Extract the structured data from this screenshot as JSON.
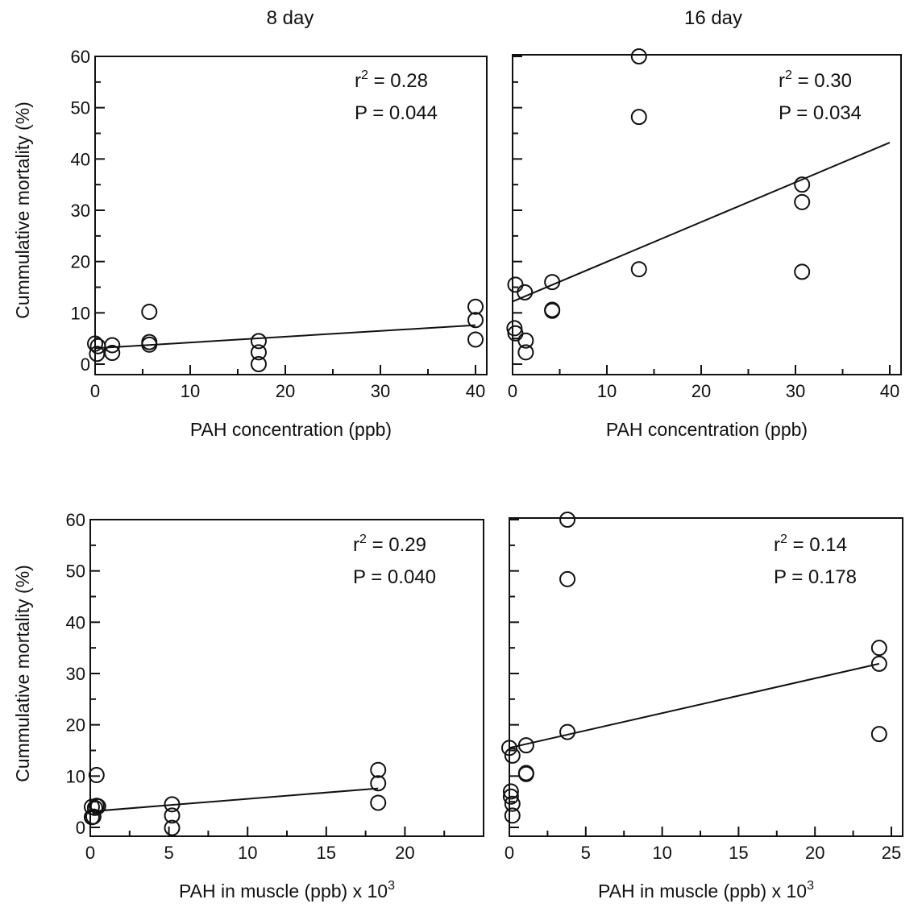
{
  "column_titles": [
    "8 day",
    "16 day"
  ],
  "chart_data": [
    {
      "type": "scatter",
      "xlabel": "PAH concentration (ppb)",
      "ylabel": "Cummulative mortality (%)",
      "xlim": [
        0,
        40
      ],
      "ylim": [
        0,
        60
      ],
      "xticks": [
        0,
        10,
        20,
        30,
        40
      ],
      "yticks": [
        0,
        10,
        20,
        30,
        40,
        50,
        60
      ],
      "stats": {
        "r2_label": "r",
        "r2_sup": "2",
        "r2_value": "= 0.28",
        "p_text": "P = 0.044"
      },
      "points": [
        [
          0,
          4
        ],
        [
          0.3,
          3.5
        ],
        [
          0.2,
          2
        ],
        [
          1.8,
          3.7
        ],
        [
          1.8,
          2.2
        ],
        [
          5.7,
          10.2
        ],
        [
          5.7,
          4.3
        ],
        [
          5.7,
          3.8
        ],
        [
          17.2,
          4.5
        ],
        [
          17.2,
          2.3
        ],
        [
          17.2,
          0
        ],
        [
          40,
          11.2
        ],
        [
          40,
          8.6
        ],
        [
          40,
          4.8
        ]
      ],
      "fit_line": {
        "x": [
          0,
          40
        ],
        "y": [
          3.1,
          7.6
        ]
      }
    },
    {
      "type": "scatter",
      "xlabel": "PAH concentration (ppb)",
      "ylabel": "",
      "xlim": [
        0,
        40
      ],
      "ylim": [
        0,
        60
      ],
      "xticks": [
        0,
        10,
        20,
        30,
        40
      ],
      "yticks": [
        0,
        10,
        20,
        30,
        40,
        50,
        60
      ],
      "stats": {
        "r2_label": "r",
        "r2_sup": "2",
        "r2_value": "= 0.30",
        "p_text": "P = 0.034"
      },
      "points": [
        [
          0.3,
          15.5
        ],
        [
          0.2,
          7
        ],
        [
          0.3,
          6
        ],
        [
          1.3,
          14
        ],
        [
          1.4,
          4.6
        ],
        [
          1.4,
          2.3
        ],
        [
          4.2,
          16
        ],
        [
          4.2,
          10.6
        ],
        [
          4.2,
          10.4
        ],
        [
          13.4,
          60
        ],
        [
          13.4,
          48.2
        ],
        [
          13.4,
          18.5
        ],
        [
          30.7,
          35
        ],
        [
          30.7,
          31.6
        ],
        [
          30.7,
          18
        ]
      ],
      "fit_line": {
        "x": [
          0,
          40
        ],
        "y": [
          12.2,
          43.2
        ]
      }
    },
    {
      "type": "scatter",
      "xlabel": "PAH in muscle (ppb) x 10",
      "xlabel_sup": "3",
      "ylabel": "Cummulative mortality (%)",
      "xlim": [
        0,
        25
      ],
      "ylim": [
        0,
        60
      ],
      "xticks": [
        0,
        5,
        10,
        15,
        20
      ],
      "yticks": [
        0,
        10,
        20,
        30,
        40,
        50,
        60
      ],
      "stats": {
        "r2_label": "r",
        "r2_sup": "2",
        "r2_value": "= 0.29",
        "p_text": "P = 0.040"
      },
      "points": [
        [
          0.1,
          4
        ],
        [
          0.1,
          2
        ],
        [
          0.2,
          2.1
        ],
        [
          0.3,
          3.8
        ],
        [
          0.4,
          4.2
        ],
        [
          0.5,
          4.1
        ],
        [
          0.4,
          10.2
        ],
        [
          5.2,
          4.5
        ],
        [
          5.2,
          2.3
        ],
        [
          5.2,
          -0.1
        ],
        [
          18.3,
          11.2
        ],
        [
          18.3,
          8.6
        ],
        [
          18.3,
          4.8
        ]
      ],
      "fit_line": {
        "x": [
          0,
          18.3
        ],
        "y": [
          3.1,
          7.6
        ]
      }
    },
    {
      "type": "scatter",
      "xlabel": "PAH in muscle (ppb) x 10",
      "xlabel_sup": "3",
      "ylabel": "",
      "xlim": [
        0,
        25
      ],
      "ylim": [
        0,
        60
      ],
      "xticks": [
        0,
        5,
        10,
        15,
        20,
        25
      ],
      "yticks": [
        0,
        10,
        20,
        30,
        40,
        50,
        60
      ],
      "stats": {
        "r2_label": "r",
        "r2_sup": "2",
        "r2_value": "= 0.14",
        "p_text": "P = 0.178"
      },
      "points": [
        [
          0,
          15.5
        ],
        [
          0.1,
          7
        ],
        [
          0.1,
          6
        ],
        [
          0.2,
          14
        ],
        [
          0.2,
          4.6
        ],
        [
          0.2,
          2.3
        ],
        [
          1.1,
          16
        ],
        [
          1.1,
          10.6
        ],
        [
          1.1,
          10.4
        ],
        [
          3.8,
          60
        ],
        [
          3.8,
          48.4
        ],
        [
          3.8,
          18.6
        ],
        [
          24.2,
          35
        ],
        [
          24.2,
          31.9
        ],
        [
          24.2,
          18.2
        ]
      ],
      "fit_line": {
        "x": [
          0,
          24.2
        ],
        "y": [
          15.5,
          31.9
        ]
      }
    }
  ]
}
